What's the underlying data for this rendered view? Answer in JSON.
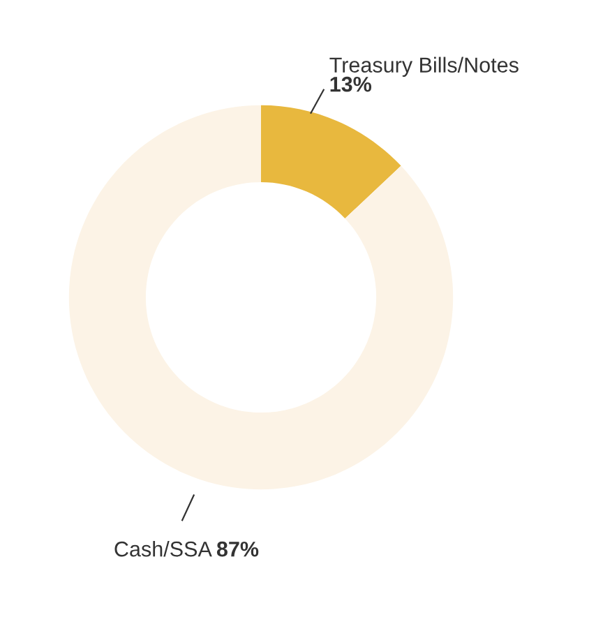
{
  "chart_data": {
    "type": "donut",
    "categories": [
      "Treasury Bills/Notes",
      "Cash/SSA"
    ],
    "values": [
      13,
      87
    ],
    "colors": [
      "#e8b83e",
      "#fcf3e6"
    ],
    "value_labels": [
      "13%",
      "87%"
    ],
    "legend": false
  }
}
